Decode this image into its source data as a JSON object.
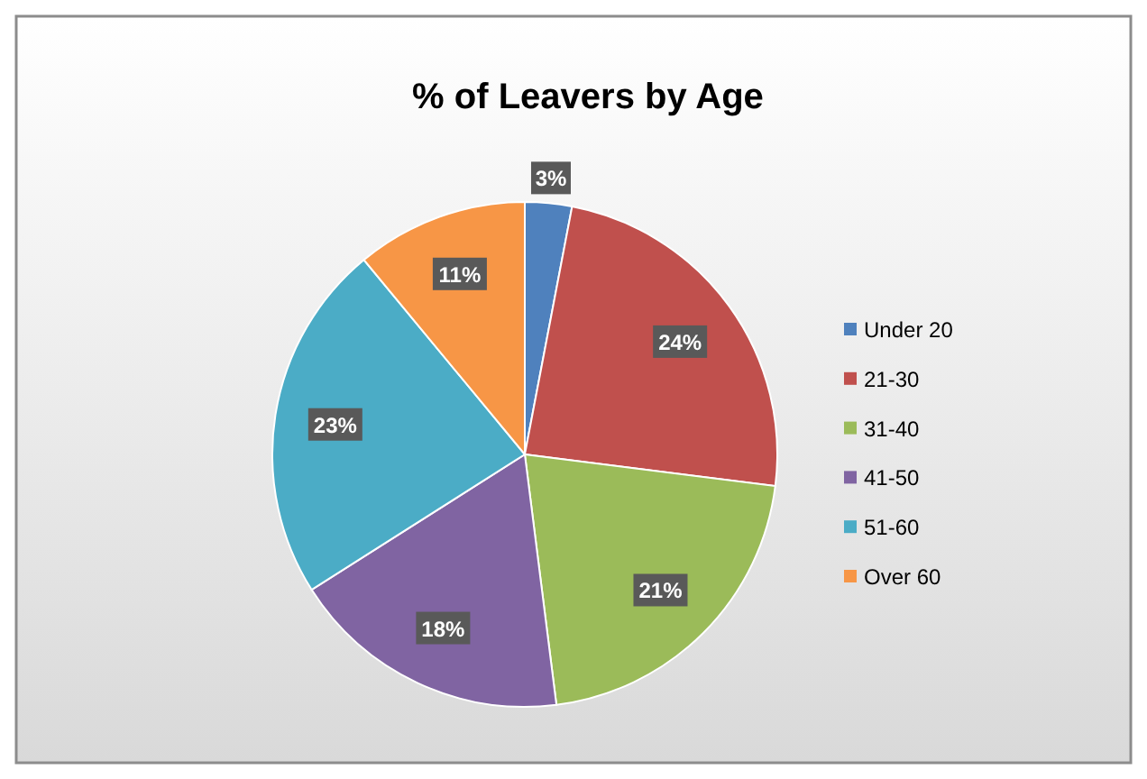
{
  "chart_data": {
    "type": "pie",
    "title": "% of Leavers by Age",
    "categories": [
      "Under 20",
      "21-30",
      "31-40",
      "41-50",
      "51-60",
      "Over 60"
    ],
    "values": [
      3,
      24,
      21,
      18,
      23,
      11
    ],
    "value_labels": [
      "3%",
      "24%",
      "21%",
      "18%",
      "23%",
      "11%"
    ],
    "colors": [
      "#4f81bd",
      "#c0504d",
      "#9bbb59",
      "#8064a2",
      "#4bacc6",
      "#f79646"
    ],
    "legend": "right"
  }
}
